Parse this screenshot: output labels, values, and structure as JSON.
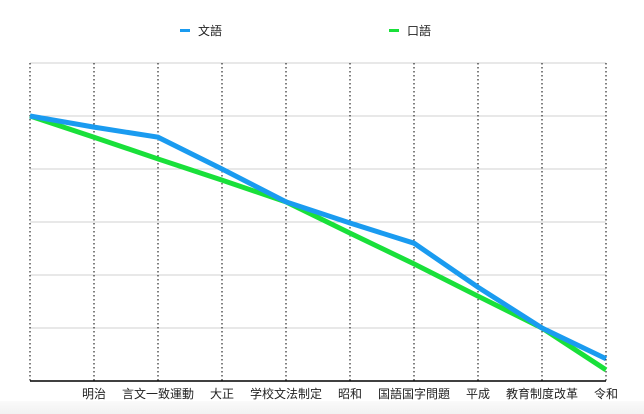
{
  "chart_data": {
    "type": "line",
    "title": "",
    "xlabel": "",
    "ylabel": "",
    "ylim": [
      0,
      6
    ],
    "y_ticks_labeled": false,
    "grid": {
      "horizontal": "solid light gray",
      "vertical": "dotted black"
    },
    "legend_position": "top",
    "categories": [
      "",
      "明治",
      "言文一致運動",
      "大正",
      "学校文法制定",
      "昭和",
      "国語国字問題",
      "平成",
      "教育制度改革",
      "令和"
    ],
    "series": [
      {
        "name": "文語",
        "color": "#1a9bf0",
        "values": [
          5.0,
          4.79,
          4.6,
          4.0,
          3.38,
          2.98,
          2.6,
          1.77,
          1.0,
          0.42
        ]
      },
      {
        "name": "口語",
        "color": "#19e03a",
        "values": [
          5.0,
          4.6,
          4.19,
          3.79,
          3.38,
          2.79,
          2.21,
          1.6,
          1.0,
          0.21
        ]
      }
    ]
  },
  "legend": {
    "items": [
      {
        "label": "文語",
        "color": "#1a9bf0"
      },
      {
        "label": "口語",
        "color": "#19e03a"
      }
    ]
  }
}
